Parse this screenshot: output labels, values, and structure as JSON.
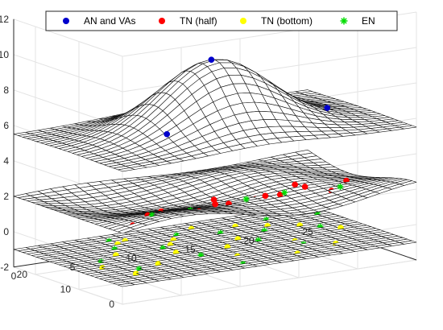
{
  "chart_data": {
    "type": "scatter",
    "subtype": "3d-surface-with-scatter",
    "title": "",
    "xlabel": "",
    "ylabel": "",
    "zlabel": "",
    "xlim": [
      0,
      25
    ],
    "ylim": [
      0,
      25
    ],
    "zlim": [
      -2,
      12
    ],
    "x_ticks": [
      "0",
      "5",
      "10",
      "15",
      "20",
      "25"
    ],
    "y_ticks": [
      "0",
      "10",
      "20"
    ],
    "z_ticks": [
      "-2",
      "0",
      "2",
      "4",
      "6",
      "8",
      "10",
      "12"
    ],
    "grid": true,
    "legend_position": "top",
    "surfaces": [
      {
        "description": "top surface, Gaussian bump",
        "peak_z": 9.5,
        "edge_z": 5.5
      },
      {
        "description": "middle surface, wavy sheet",
        "z_range": [
          1.0,
          3.0
        ]
      },
      {
        "description": "bottom surface, flat plane",
        "z": -1.0
      }
    ],
    "series": [
      {
        "name": "AN and VAs",
        "marker": "circle",
        "color": "#0000cc",
        "points": [
          [
            12,
            12,
            9.6
          ],
          [
            6,
            6,
            6.5
          ],
          [
            6,
            10,
            5.4
          ],
          [
            10,
            13,
            4.8
          ],
          [
            18,
            16,
            4.2
          ],
          [
            20,
            7,
            6.5
          ],
          [
            23,
            9,
            5.0
          ]
        ]
      },
      {
        "name": "TN (half)",
        "marker": "circle",
        "color": "#ff0000",
        "points": [
          [
            2,
            3,
            2.0
          ],
          [
            4,
            5,
            2.2
          ],
          [
            6,
            7,
            1.9
          ],
          [
            8,
            4,
            2.1
          ],
          [
            10,
            6,
            2.4
          ],
          [
            12,
            8,
            1.8
          ],
          [
            14,
            5,
            2.3
          ],
          [
            16,
            7,
            2.0
          ],
          [
            18,
            9,
            2.2
          ],
          [
            20,
            6,
            1.9
          ],
          [
            22,
            8,
            2.1
          ],
          [
            3,
            8,
            1.5
          ],
          [
            7,
            10,
            1.7
          ],
          [
            11,
            11,
            1.3
          ],
          [
            15,
            10,
            1.6
          ],
          [
            19,
            11,
            1.4
          ],
          [
            23,
            12,
            0.8
          ],
          [
            24,
            14,
            0.6
          ],
          [
            9,
            3,
            2.5
          ],
          [
            17,
            4,
            2.6
          ],
          [
            13,
            9,
            1.2
          ],
          [
            21,
            10,
            1.1
          ]
        ]
      },
      {
        "name": "TN (bottom)",
        "marker": "circle",
        "color": "#ffff00",
        "points": [
          [
            3,
            5,
            -1.0
          ],
          [
            6,
            8,
            -1.0
          ],
          [
            9,
            12,
            -1.0
          ],
          [
            12,
            6,
            -1.0
          ],
          [
            15,
            14,
            -1.0
          ],
          [
            18,
            9,
            -1.0
          ],
          [
            21,
            16,
            -1.0
          ],
          [
            5,
            15,
            -1.0
          ],
          [
            11,
            18,
            -1.0
          ],
          [
            17,
            20,
            -1.0
          ],
          [
            8,
            21,
            -1.0
          ],
          [
            14,
            22,
            -1.0
          ],
          [
            20,
            5,
            -1.0
          ],
          [
            23,
            12,
            -1.0
          ],
          [
            2,
            10,
            -1.0
          ],
          [
            16,
            3,
            -1.0
          ],
          [
            10,
            16,
            -1.0
          ],
          [
            7,
            20,
            -1.0
          ],
          [
            13,
            11,
            -1.0
          ],
          [
            19,
            18,
            -1.0
          ]
        ]
      },
      {
        "name": "EN",
        "marker": "asterisk",
        "color": "#00dd00",
        "points": [
          [
            4,
            4,
            2.3
          ],
          [
            8,
            6,
            2.0
          ],
          [
            12,
            4,
            2.4
          ],
          [
            16,
            6,
            2.2
          ],
          [
            20,
            4,
            2.3
          ],
          [
            6,
            10,
            1.6
          ],
          [
            14,
            11,
            1.4
          ],
          [
            22,
            10,
            1.0
          ],
          [
            24,
            16,
            0.9
          ],
          [
            22,
            18,
            0.3
          ],
          [
            4,
            7,
            -1.0
          ],
          [
            10,
            9,
            -1.0
          ],
          [
            16,
            12,
            -1.0
          ],
          [
            22,
            14,
            -1.0
          ],
          [
            6,
            18,
            -1.0
          ],
          [
            12,
            20,
            -1.0
          ],
          [
            18,
            16,
            -1.0
          ],
          [
            24,
            20,
            -1.0
          ],
          [
            3,
            13,
            -1.0
          ],
          [
            9,
            15,
            -1.0
          ],
          [
            15,
            18,
            -1.0
          ],
          [
            20,
            21,
            -1.0
          ],
          [
            11,
            2,
            -1.0
          ],
          [
            18,
            7,
            -1.0
          ],
          [
            7,
            22,
            -1.0
          ]
        ]
      }
    ]
  }
}
